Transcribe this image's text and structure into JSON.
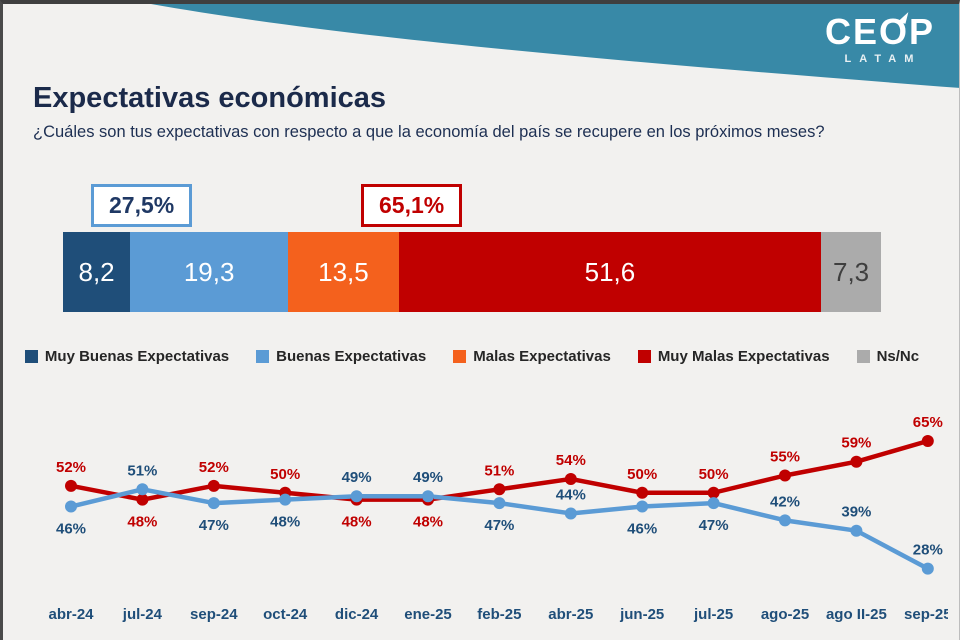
{
  "header": {
    "logo_title": "CEOP",
    "logo_subtitle": "LATAM",
    "band_color": "#3889a7"
  },
  "title": "Expectativas económicas",
  "subtitle": "¿Cuáles son tus expectativas con respecto a que la economía del país se recupere en los próximos meses?",
  "callouts": {
    "good": {
      "label": "27,5%",
      "border_color": "#5b9bd5",
      "text_color": "#1f3864"
    },
    "bad": {
      "label": "65,1%",
      "border_color": "#c00000",
      "text_color": "#c00000"
    }
  },
  "chart_data": [
    {
      "type": "bar",
      "variant": "horizontal-stacked-100",
      "title": "Expectativas económicas",
      "series": [
        {
          "name": "Muy Buenas Expectativas",
          "value": 8.2,
          "label": "8,2",
          "color": "#1f4e79",
          "label_color": "#ffffff"
        },
        {
          "name": "Buenas Expectativas",
          "value": 19.3,
          "label": "19,3",
          "color": "#5b9bd5",
          "label_color": "#ffffff"
        },
        {
          "name": "Malas Expectativas",
          "value": 13.5,
          "label": "13,5",
          "color": "#f4611d",
          "label_color": "#ffffff"
        },
        {
          "name": "Muy Malas Expectativas",
          "value": 51.6,
          "label": "51,6",
          "color": "#c00000",
          "label_color": "#ffffff"
        },
        {
          "name": "Ns/Nc",
          "value": 7.3,
          "label": "7,3",
          "color": "#ababab",
          "label_color": "#3f3f3f"
        }
      ],
      "annotations": [
        {
          "text": "27,5%",
          "anchor": "Buenas + Muy Buenas"
        },
        {
          "text": "65,1%",
          "anchor": "Malas + Muy Malas"
        }
      ],
      "legend_position": "bottom",
      "grid": false
    },
    {
      "type": "line",
      "categories": [
        "abr-24",
        "jul-24",
        "sep-24",
        "oct-24",
        "dic-24",
        "ene-25",
        "feb-25",
        "abr-25",
        "jun-25",
        "jul-25",
        "ago-25",
        "ago II-25",
        "sep-25"
      ],
      "series": [
        {
          "name": "linea-roja",
          "color": "#c00000",
          "label_color": "#c00000",
          "values": [
            52,
            48,
            52,
            50,
            48,
            48,
            51,
            54,
            50,
            50,
            55,
            59,
            65
          ],
          "label_pos": [
            "above",
            "below",
            "above",
            "above",
            "below",
            "below",
            "above",
            "above",
            "above",
            "above",
            "above",
            "above",
            "above"
          ]
        },
        {
          "name": "linea-azul",
          "color": "#5b9bd5",
          "label_color": "#1f4e79",
          "values": [
            46,
            51,
            47,
            48,
            49,
            49,
            47,
            44,
            46,
            47,
            42,
            39,
            28
          ],
          "label_pos": [
            "below",
            "above",
            "below",
            "below",
            "above",
            "above",
            "below",
            "above",
            "below",
            "below",
            "above",
            "above",
            "above"
          ]
        }
      ],
      "value_suffix": "%",
      "ylim": [
        25,
        68
      ],
      "grid": false,
      "legend_position": "none"
    }
  ]
}
